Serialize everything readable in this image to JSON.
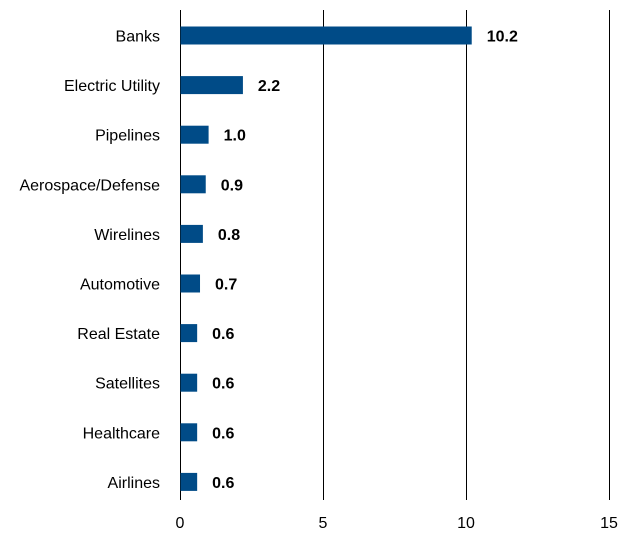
{
  "chart_data": {
    "type": "bar",
    "orientation": "horizontal",
    "categories": [
      "Banks",
      "Electric Utility",
      "Pipelines",
      "Aerospace/Defense",
      "Wirelines",
      "Automotive",
      "Real Estate",
      "Satellites",
      "Healthcare",
      "Airlines"
    ],
    "values": [
      10.2,
      2.2,
      1.0,
      0.9,
      0.8,
      0.7,
      0.6,
      0.6,
      0.6,
      0.6
    ],
    "value_labels": [
      "10.2",
      "2.2",
      "1.0",
      "0.9",
      "0.8",
      "0.7",
      "0.6",
      "0.6",
      "0.6",
      "0.6"
    ],
    "title": "",
    "xlabel": "",
    "ylabel": "",
    "xlim": [
      0,
      15
    ],
    "xticks": [
      0,
      5,
      10,
      15
    ],
    "xtick_labels": [
      "0",
      "5",
      "10",
      "15"
    ],
    "grid": "vertical",
    "legend": "none",
    "bar_color": "#004b87"
  }
}
